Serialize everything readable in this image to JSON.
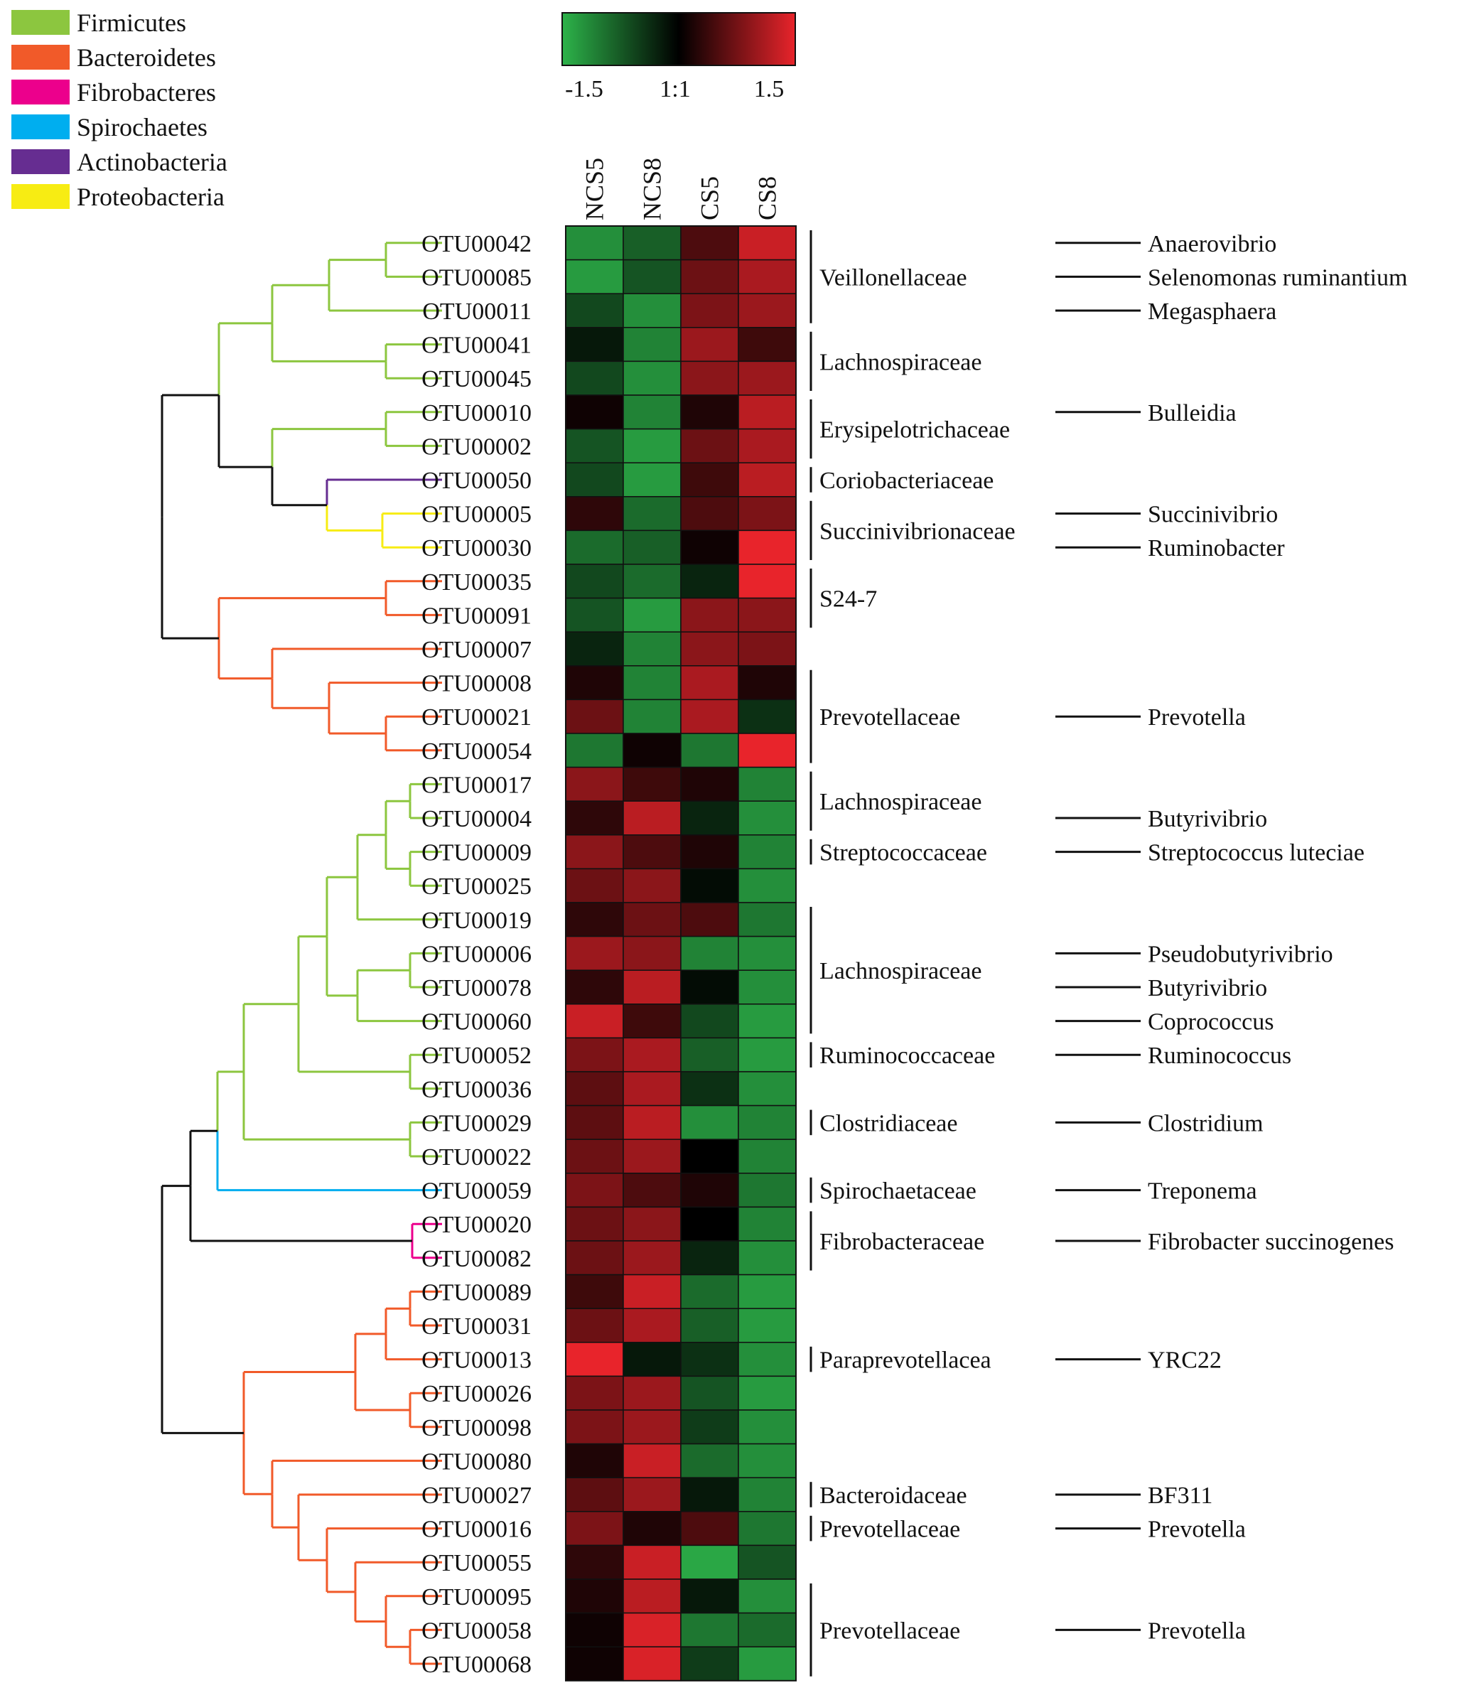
{
  "chart_data": {
    "type": "heatmap",
    "title": "",
    "columns": [
      "NCS5",
      "NCS8",
      "CS5",
      "CS8"
    ],
    "colorbar": {
      "min": -1.5,
      "max": 1.5,
      "tick_labels": [
        "-1.5",
        "1:1",
        "1.5"
      ],
      "low_color": "#2db34a",
      "mid_color": "#000000",
      "high_color": "#e8242b"
    },
    "phyla": [
      {
        "name": "Firmicutes",
        "color": "#8cc63f"
      },
      {
        "name": "Bacteroidetes",
        "color": "#f15a29"
      },
      {
        "name": "Fibrobacteres",
        "color": "#ec008c"
      },
      {
        "name": "Spirochaetes",
        "color": "#00aeef"
      },
      {
        "name": "Actinobacteria",
        "color": "#662d91"
      },
      {
        "name": "Proteobacteria",
        "color": "#f7ec13"
      }
    ],
    "rows": [
      {
        "otu": "OTU00042",
        "values": [
          -1.2,
          -0.8,
          0.5,
          1.3
        ]
      },
      {
        "otu": "OTU00085",
        "values": [
          -1.3,
          -0.7,
          0.7,
          1.1
        ]
      },
      {
        "otu": "OTU00011",
        "values": [
          -0.6,
          -1.2,
          0.8,
          1.0
        ]
      },
      {
        "otu": "OTU00041",
        "values": [
          -0.2,
          -1.1,
          1.0,
          0.4
        ]
      },
      {
        "otu": "OTU00045",
        "values": [
          -0.6,
          -1.2,
          0.9,
          1.0
        ]
      },
      {
        "otu": "OTU00010",
        "values": [
          0.1,
          -1.1,
          0.2,
          1.2
        ]
      },
      {
        "otu": "OTU00002",
        "values": [
          -0.7,
          -1.3,
          0.7,
          1.1
        ]
      },
      {
        "otu": "OTU00050",
        "values": [
          -0.6,
          -1.3,
          0.4,
          1.2
        ]
      },
      {
        "otu": "OTU00005",
        "values": [
          0.3,
          -0.9,
          0.5,
          0.8
        ]
      },
      {
        "otu": "OTU00030",
        "values": [
          -0.9,
          -0.8,
          0.1,
          1.5
        ]
      },
      {
        "otu": "OTU00035",
        "values": [
          -0.6,
          -0.9,
          -0.3,
          1.5
        ]
      },
      {
        "otu": "OTU00091",
        "values": [
          -0.7,
          -1.3,
          0.9,
          0.9
        ]
      },
      {
        "otu": "OTU00007",
        "values": [
          -0.3,
          -1.1,
          0.9,
          0.8
        ]
      },
      {
        "otu": "OTU00008",
        "values": [
          0.2,
          -1.1,
          1.1,
          0.2
        ]
      },
      {
        "otu": "OTU00021",
        "values": [
          0.7,
          -1.1,
          1.1,
          -0.4
        ]
      },
      {
        "otu": "OTU00054",
        "values": [
          -1.0,
          0.1,
          -1.0,
          1.5
        ]
      },
      {
        "otu": "OTU00017",
        "values": [
          0.9,
          0.4,
          0.2,
          -1.1
        ]
      },
      {
        "otu": "OTU00004",
        "values": [
          0.3,
          1.2,
          -0.3,
          -1.2
        ]
      },
      {
        "otu": "OTU00009",
        "values": [
          0.9,
          0.5,
          0.2,
          -1.1
        ]
      },
      {
        "otu": "OTU00025",
        "values": [
          0.7,
          0.9,
          -0.1,
          -1.2
        ]
      },
      {
        "otu": "OTU00019",
        "values": [
          0.3,
          0.7,
          0.5,
          -1.0
        ]
      },
      {
        "otu": "OTU00006",
        "values": [
          1.0,
          0.9,
          -1.1,
          -1.2
        ]
      },
      {
        "otu": "OTU00078",
        "values": [
          0.3,
          1.2,
          -0.1,
          -1.2
        ]
      },
      {
        "otu": "OTU00060",
        "values": [
          1.3,
          0.4,
          -0.6,
          -1.3
        ]
      },
      {
        "otu": "OTU00052",
        "values": [
          0.8,
          1.1,
          -0.8,
          -1.3
        ]
      },
      {
        "otu": "OTU00036",
        "values": [
          0.6,
          1.1,
          -0.4,
          -1.2
        ]
      },
      {
        "otu": "OTU00029",
        "values": [
          0.6,
          1.2,
          -1.2,
          -1.1
        ]
      },
      {
        "otu": "OTU00022",
        "values": [
          0.7,
          1.0,
          0.0,
          -1.1
        ]
      },
      {
        "otu": "OTU00059",
        "values": [
          0.8,
          0.5,
          0.2,
          -1.0
        ]
      },
      {
        "otu": "OTU00020",
        "values": [
          0.7,
          0.9,
          0.0,
          -1.1
        ]
      },
      {
        "otu": "OTU00082",
        "values": [
          0.7,
          1.0,
          -0.3,
          -1.2
        ]
      },
      {
        "otu": "OTU00089",
        "values": [
          0.4,
          1.3,
          -0.9,
          -1.3
        ]
      },
      {
        "otu": "OTU00031",
        "values": [
          0.7,
          1.1,
          -0.8,
          -1.3
        ]
      },
      {
        "otu": "OTU00013",
        "values": [
          1.5,
          -0.2,
          -0.4,
          -1.2
        ]
      },
      {
        "otu": "OTU00026",
        "values": [
          0.8,
          1.0,
          -0.7,
          -1.3
        ]
      },
      {
        "otu": "OTU00098",
        "values": [
          0.8,
          1.0,
          -0.5,
          -1.2
        ]
      },
      {
        "otu": "OTU00080",
        "values": [
          0.2,
          1.3,
          -0.9,
          -1.2
        ]
      },
      {
        "otu": "OTU00027",
        "values": [
          0.6,
          1.0,
          -0.2,
          -1.1
        ]
      },
      {
        "otu": "OTU00016",
        "values": [
          0.8,
          0.2,
          0.5,
          -1.0
        ]
      },
      {
        "otu": "OTU00055",
        "values": [
          0.3,
          1.3,
          -1.4,
          -0.7
        ]
      },
      {
        "otu": "OTU00095",
        "values": [
          0.2,
          1.2,
          -0.2,
          -1.2
        ]
      },
      {
        "otu": "OTU00058",
        "values": [
          0.1,
          1.4,
          -1.0,
          -0.9
        ]
      },
      {
        "otu": "OTU00068",
        "values": [
          0.1,
          1.4,
          -0.5,
          -1.3
        ]
      }
    ],
    "families": [
      {
        "name": "Veillonellaceae",
        "rows": [
          0,
          2
        ]
      },
      {
        "name": "Lachnospiraceae",
        "rows": [
          3,
          4
        ]
      },
      {
        "name": "Erysipelotrichaceae",
        "rows": [
          5,
          6
        ]
      },
      {
        "name": "Coriobacteriaceae",
        "rows": [
          7,
          7
        ]
      },
      {
        "name": "Succinivibrionaceae",
        "rows": [
          8,
          9
        ]
      },
      {
        "name": "S24-7",
        "rows": [
          10,
          11
        ]
      },
      {
        "name": "Prevotellaceae",
        "rows": [
          13,
          15
        ]
      },
      {
        "name": "Lachnospiraceae",
        "rows": [
          16,
          17
        ]
      },
      {
        "name": "Streptococcaceae",
        "rows": [
          18,
          18
        ]
      },
      {
        "name": "Lachnospiraceae",
        "rows": [
          20,
          23
        ]
      },
      {
        "name": "Ruminococcaceae",
        "rows": [
          24,
          24
        ]
      },
      {
        "name": "Clostridiaceae",
        "rows": [
          26,
          26
        ]
      },
      {
        "name": "Spirochaetaceae",
        "rows": [
          28,
          28
        ]
      },
      {
        "name": "Fibrobacteraceae",
        "rows": [
          29,
          30
        ]
      },
      {
        "name": "Paraprevotellacea",
        "rows": [
          33,
          33
        ]
      },
      {
        "name": "Bacteroidaceae",
        "rows": [
          37,
          37
        ]
      },
      {
        "name": "Prevotellaceae",
        "rows": [
          38,
          38
        ]
      },
      {
        "name": "Prevotellaceae",
        "rows": [
          40,
          42
        ]
      }
    ],
    "genera": [
      {
        "name": "Anaerovibrio",
        "row": 0
      },
      {
        "name": "Selenomonas ruminantium",
        "row": 1
      },
      {
        "name": "Megasphaera",
        "row": 2
      },
      {
        "name": "Bulleidia",
        "row": 5
      },
      {
        "name": "Succinivibrio",
        "row": 8
      },
      {
        "name": "Ruminobacter",
        "row": 9
      },
      {
        "name": "Prevotella",
        "row": 14
      },
      {
        "name": "Butyrivibrio",
        "row": 17
      },
      {
        "name": "Streptococcus luteciae",
        "row": 18
      },
      {
        "name": "Pseudobutyrivibrio",
        "row": 21
      },
      {
        "name": "Butyrivibrio",
        "row": 22
      },
      {
        "name": "Coprococcus",
        "row": 23
      },
      {
        "name": "Ruminococcus",
        "row": 24
      },
      {
        "name": "Clostridium",
        "row": 26
      },
      {
        "name": "Treponema",
        "row": 28
      },
      {
        "name": "Fibrobacter succinogenes",
        "row": 29.5
      },
      {
        "name": "YRC22",
        "row": 33
      },
      {
        "name": "BF311",
        "row": 37
      },
      {
        "name": "Prevotella",
        "row": 38
      },
      {
        "name": "Prevotella",
        "row": 41
      }
    ]
  }
}
